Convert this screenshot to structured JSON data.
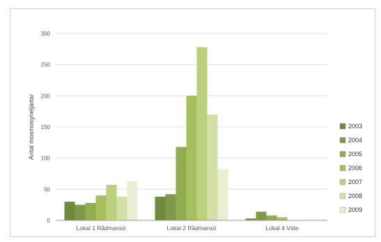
{
  "chart_data": {
    "type": "bar",
    "title": "",
    "xlabel": "",
    "ylabel": "Antal mosmosyneljärtar",
    "ylim": [
      0,
      300
    ],
    "yticks": [
      0,
      50,
      100,
      150,
      200,
      250,
      300
    ],
    "grid": true,
    "legend_position": "right",
    "categories": [
      "Lokal 1 Rådmansö",
      "Lokal 2 Rådmansö",
      "Lokal 4 Väte"
    ],
    "series": [
      {
        "name": "2003",
        "color": "#6f8a3c",
        "values": [
          30,
          38,
          3
        ]
      },
      {
        "name": "2004",
        "color": "#7f9a46",
        "values": [
          25,
          42,
          14
        ]
      },
      {
        "name": "2005",
        "color": "#92ad4f",
        "values": [
          28,
          118,
          8
        ]
      },
      {
        "name": "2006",
        "color": "#a6c05e",
        "values": [
          40,
          200,
          5
        ]
      },
      {
        "name": "2007",
        "color": "#bcd17e",
        "values": [
          57,
          278,
          0
        ]
      },
      {
        "name": "2008",
        "color": "#d3e1a8",
        "values": [
          38,
          170,
          0
        ]
      },
      {
        "name": "2009",
        "color": "#e9efd2",
        "values": [
          63,
          82,
          0
        ]
      }
    ]
  }
}
